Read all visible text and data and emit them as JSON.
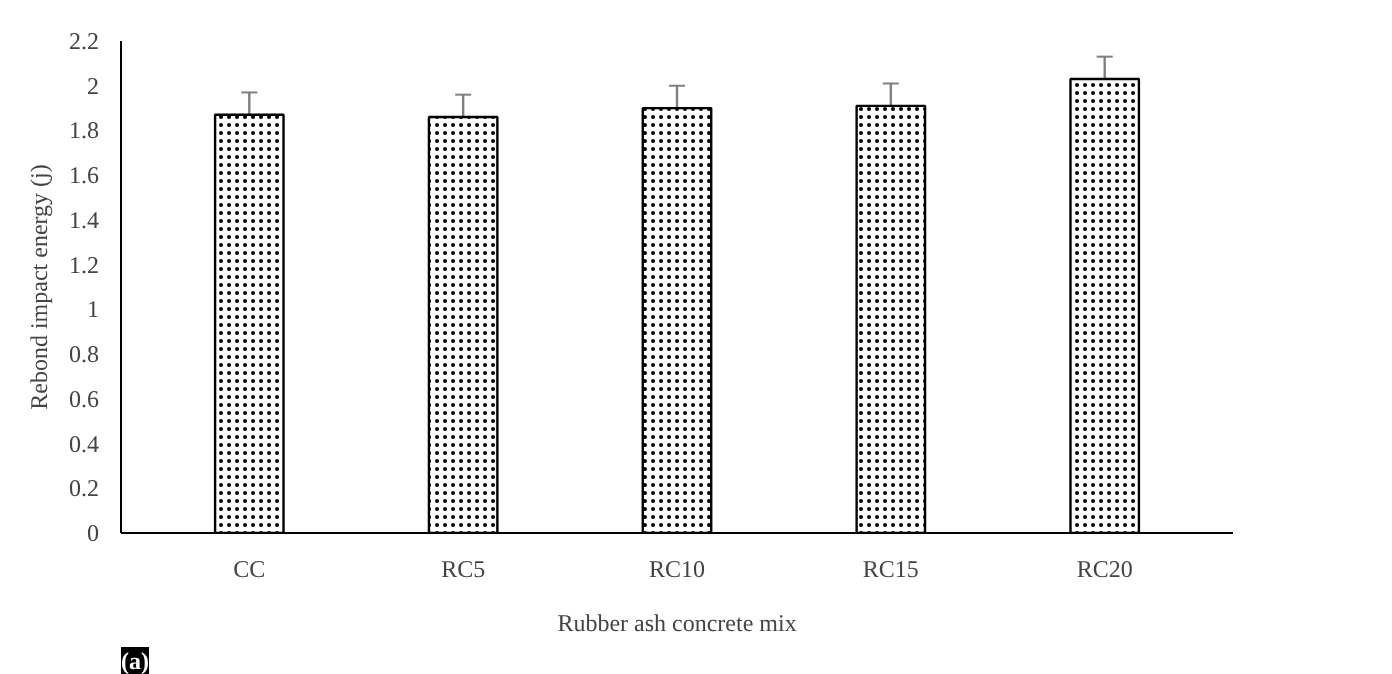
{
  "chart_data": {
    "type": "bar",
    "xlabel": "Rubber ash concrete mix",
    "ylabel": "Rebond impact energy (j)",
    "categories": [
      "CC",
      "RC5",
      "RC10",
      "RC15",
      "RC20"
    ],
    "values": [
      1.87,
      1.86,
      1.9,
      1.91,
      2.03
    ],
    "errors": [
      0.1,
      0.1,
      0.1,
      0.1,
      0.1
    ],
    "color": "#ffffff",
    "ylim": [
      0,
      2.2
    ],
    "yticks": [
      0,
      0.2,
      0.4,
      0.6,
      0.8,
      1,
      1.2,
      1.4,
      1.6,
      1.8,
      2,
      2.2
    ],
    "grid": false,
    "annotations": [
      "(a)"
    ]
  }
}
